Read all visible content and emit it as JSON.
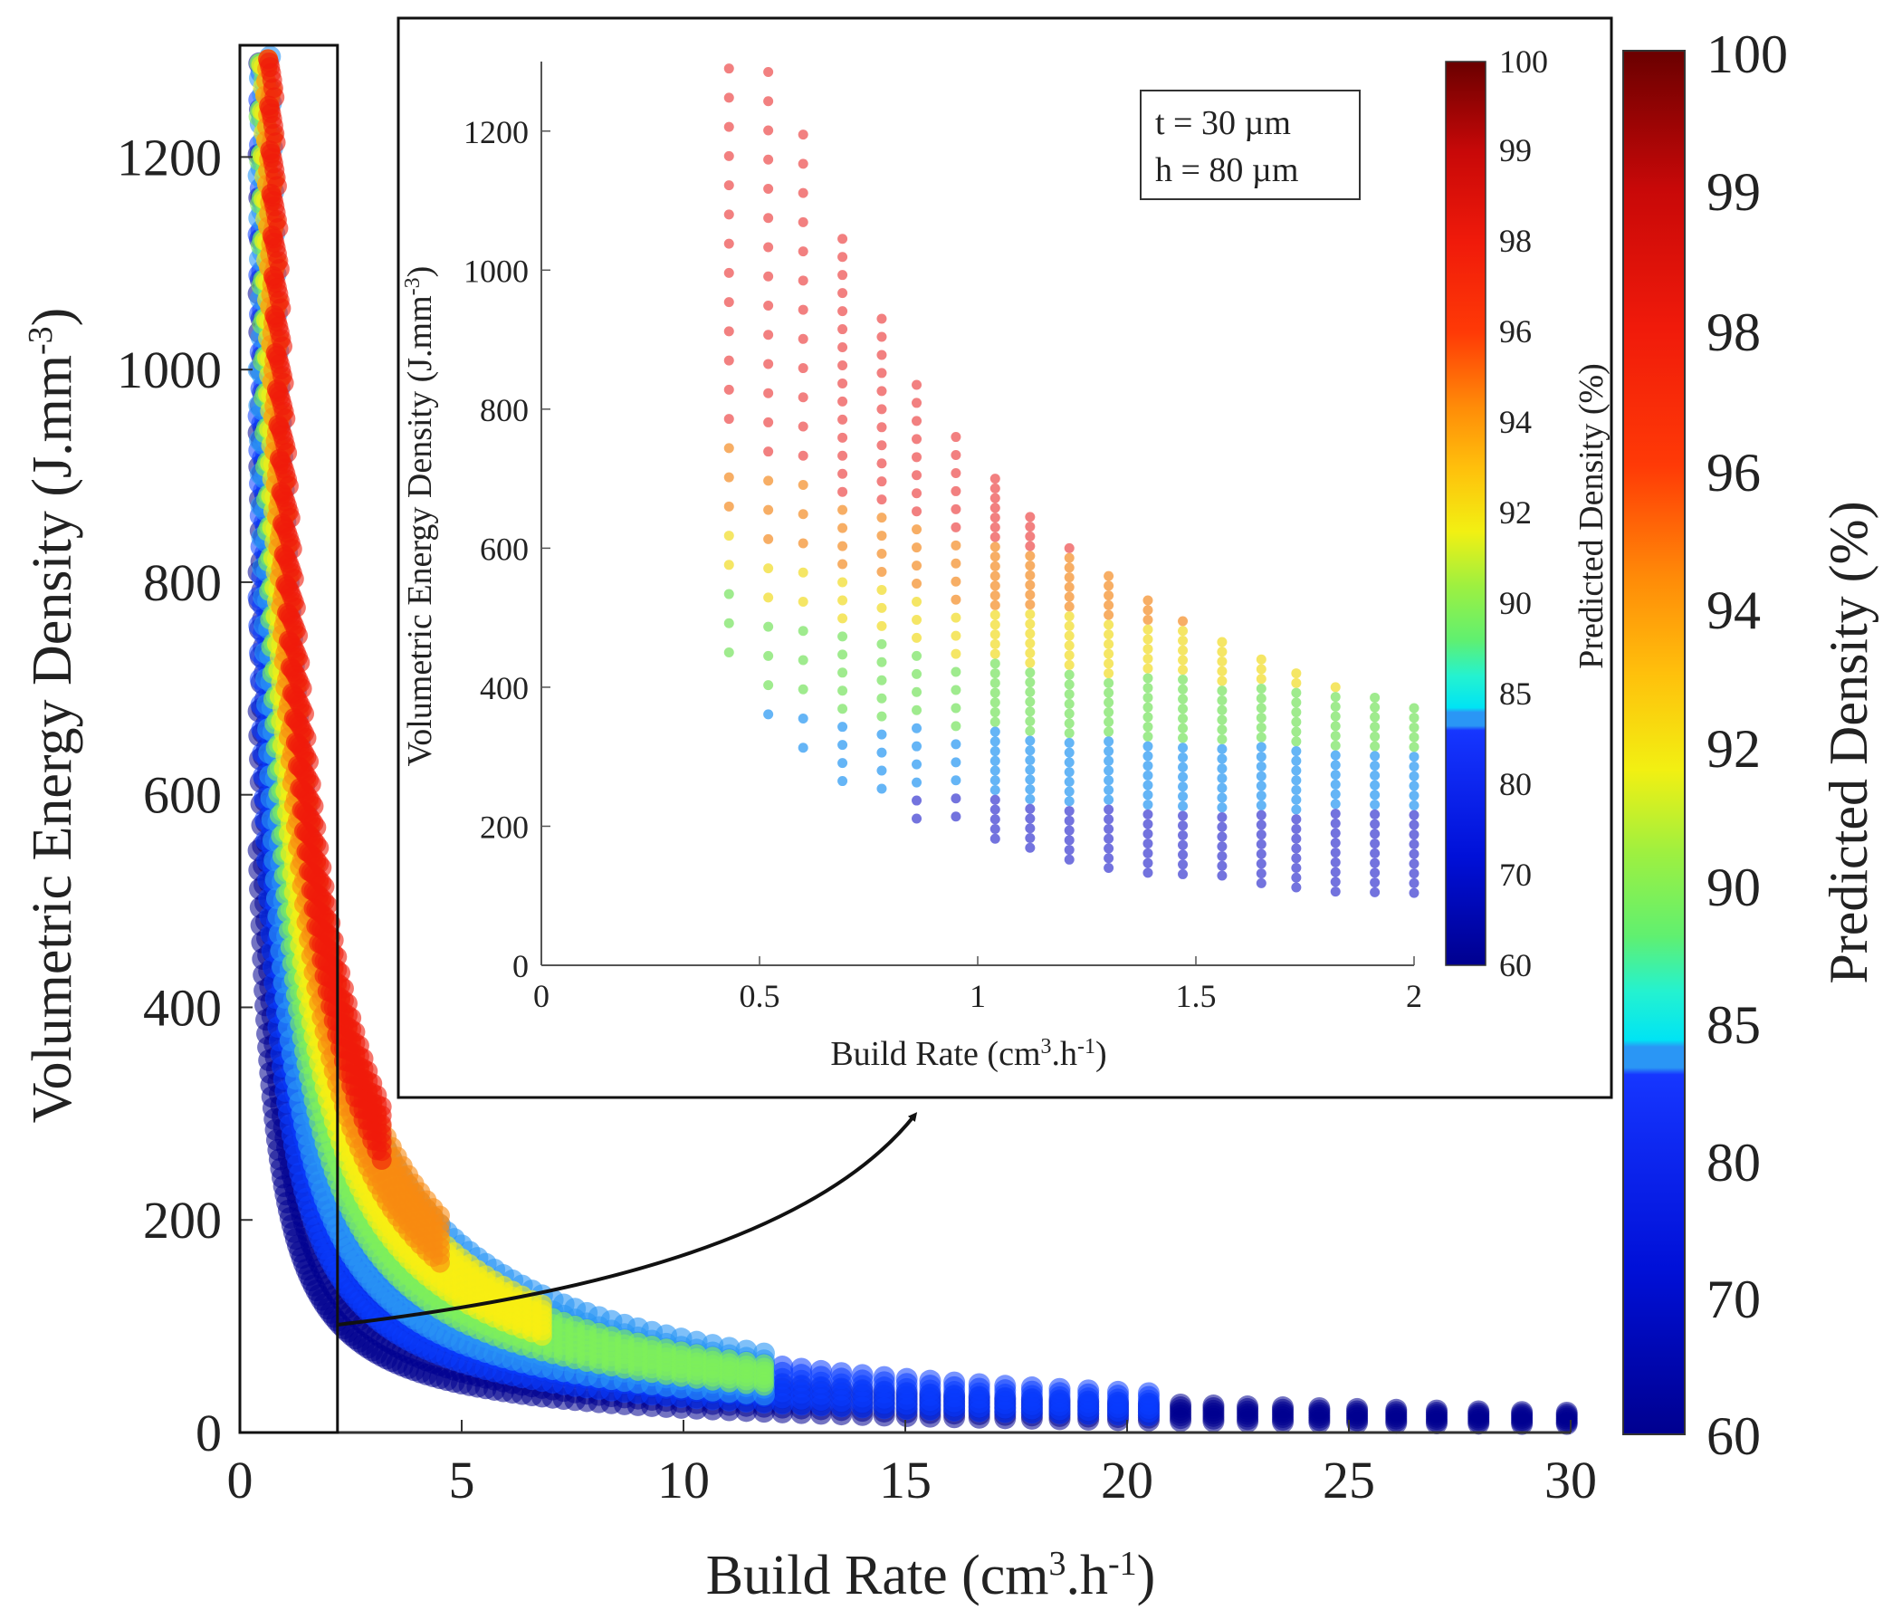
{
  "chart_data": [
    {
      "id": "main",
      "type": "scatter",
      "title": "",
      "xlabel": "Build Rate (cm",
      "xlabel_sup": "3",
      "xlabel_mid": ".h",
      "xlabel_sup2": "-1",
      "xlabel_end": ")",
      "ylabel": "Volumetric Energy Density  (J.mm",
      "ylabel_sup": "-3",
      "ylabel_end": ")",
      "xlim": [
        0,
        30
      ],
      "ylim": [
        0,
        1300
      ],
      "xticks": [
        "0",
        "5",
        "10",
        "15",
        "20",
        "25",
        "30"
      ],
      "yticks": [
        "0",
        "200",
        "400",
        "600",
        "800",
        "1000",
        "1200"
      ],
      "grid": false,
      "zoom_box": {
        "x0": 0,
        "x1": 2.2,
        "y0": 0,
        "y1": 1300
      },
      "point_model": "energy = K / build_rate",
      "point_bands": [
        {
          "color": "#1a1ab0",
          "K_min": 550,
          "K_max": 2000,
          "br_max": 30
        },
        {
          "color": "#1f6df0",
          "K_min": 950,
          "K_max": 1150,
          "br_max": 21
        },
        {
          "color": "#7ee05a",
          "K_min": 1150,
          "K_max": 1370,
          "br_max": 12
        },
        {
          "color": "#f3d21a",
          "K_min": 1370,
          "K_max": 1600,
          "br_max": 7
        },
        {
          "color": "#f57a10",
          "K_min": 1600,
          "K_max": 1800,
          "br_max": 5
        },
        {
          "color": "#e82a10",
          "K_min": 1800,
          "K_max": 2000,
          "br_max": 3.5
        }
      ]
    },
    {
      "id": "inset",
      "type": "scatter",
      "title": "",
      "xlabel": "Build Rate (cm",
      "xlabel_sup": "3",
      "xlabel_mid": ".h",
      "xlabel_sup2": "-1",
      "xlabel_end": ")",
      "ylabel": "Volumetric Energy Density (J.mm",
      "ylabel_sup": "-3",
      "ylabel_end": ")",
      "xlim": [
        0,
        2
      ],
      "ylim": [
        0,
        1300
      ],
      "xticks": [
        "0",
        "0.5",
        "1",
        "1.5",
        "2"
      ],
      "yticks": [
        "0",
        "200",
        "400",
        "600",
        "800",
        "1000",
        "1200"
      ],
      "grid": false,
      "annotation": [
        "t = 30 µm",
        "h = 80 µm"
      ],
      "columns_x": [
        0.43,
        0.52,
        0.6,
        0.69,
        0.78,
        0.86,
        0.95,
        1.04,
        1.12,
        1.21,
        1.3,
        1.39,
        1.47,
        1.56,
        1.65,
        1.73,
        1.82,
        1.91,
        2.0
      ],
      "columns_ymax": [
        1290,
        1285,
        1195,
        1045,
        930,
        835,
        760,
        700,
        645,
        600,
        560,
        525,
        495,
        465,
        440,
        420,
        400,
        385,
        370
      ],
      "columns_ymin": [
        415,
        350,
        300,
        262,
        232,
        210,
        192,
        175,
        162,
        150,
        140,
        132,
        124,
        118,
        112,
        106,
        101,
        97,
        93
      ],
      "color_transitions": "density rises with energy at fixed build rate"
    }
  ],
  "colorbars": {
    "main": {
      "label": "Predicted Density (%)",
      "ticks": [
        "60",
        "70",
        "80",
        "85",
        "90",
        "92",
        "94",
        "96",
        "98",
        "99",
        "100"
      ]
    },
    "inset": {
      "label": "Predicted Density (%)",
      "ticks": [
        "60",
        "70",
        "80",
        "85",
        "90",
        "92",
        "94",
        "96",
        "98",
        "99",
        "100"
      ]
    }
  },
  "colors": {
    "dark_blue": "#00008f",
    "blue": "#0a3cff",
    "light_blue": "#2a96f5",
    "cyan": "#00e8f0",
    "green": "#7ef05a",
    "yellow": "#f8ef12",
    "orange": "#f88a10",
    "red": "#f01a0a",
    "dark_red": "#7a0000"
  }
}
